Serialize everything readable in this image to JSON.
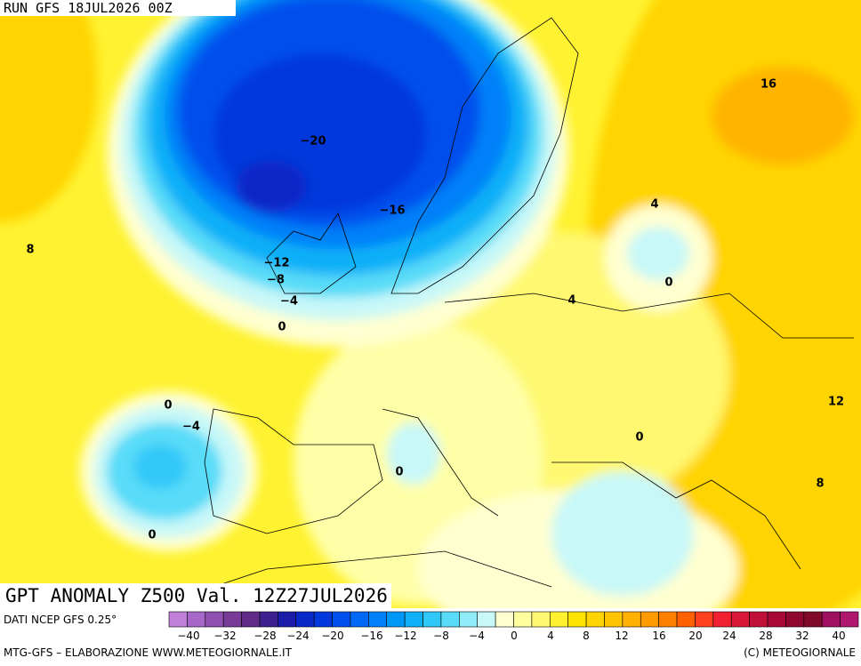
{
  "header": {
    "run": "RUN GFS 18JUL2026 00Z"
  },
  "map": {
    "title": "GPT ANOMALY Z500 Val. 12Z27JUL2026",
    "contour_labels": [
      "−20",
      "−16",
      "−12",
      "−8",
      "−4",
      "0",
      "8",
      "16",
      "4",
      "0",
      "4",
      "12",
      "0",
      "8",
      "0",
      "−4",
      "0",
      "0"
    ]
  },
  "legend": {
    "source": "DATI NCEP GFS 0.25°",
    "colors": [
      "#c080d8",
      "#a868c8",
      "#9050b0",
      "#783c98",
      "#602c88",
      "#3c2090",
      "#1c1caa",
      "#0828c8",
      "#0038dc",
      "#0050ec",
      "#0068f4",
      "#0080f8",
      "#0098f8",
      "#10b0f8",
      "#30c8f8",
      "#58dcf8",
      "#90ecf8",
      "#c8f8f8",
      "#ffffd0",
      "#ffffa0",
      "#fff870",
      "#fff030",
      "#ffe400",
      "#ffd400",
      "#ffc400",
      "#ffb000",
      "#ff9a00",
      "#ff8000",
      "#ff6000",
      "#ff4020",
      "#f02030",
      "#d81838",
      "#c01038",
      "#a80838",
      "#900830",
      "#800828",
      "#a01060",
      "#b01870"
    ],
    "ticks": [
      "−40",
      "−32",
      "−28",
      "−24",
      "−20",
      "−16",
      "−12",
      "−8",
      "−4",
      "0",
      "4",
      "8",
      "12",
      "16",
      "20",
      "24",
      "28",
      "32",
      "40"
    ]
  },
  "footer": {
    "left": "MTG-GFS – ELABORAZIONE WWW.METEOGIORNALE.IT",
    "right": "(C) METEOGIORNALE"
  }
}
